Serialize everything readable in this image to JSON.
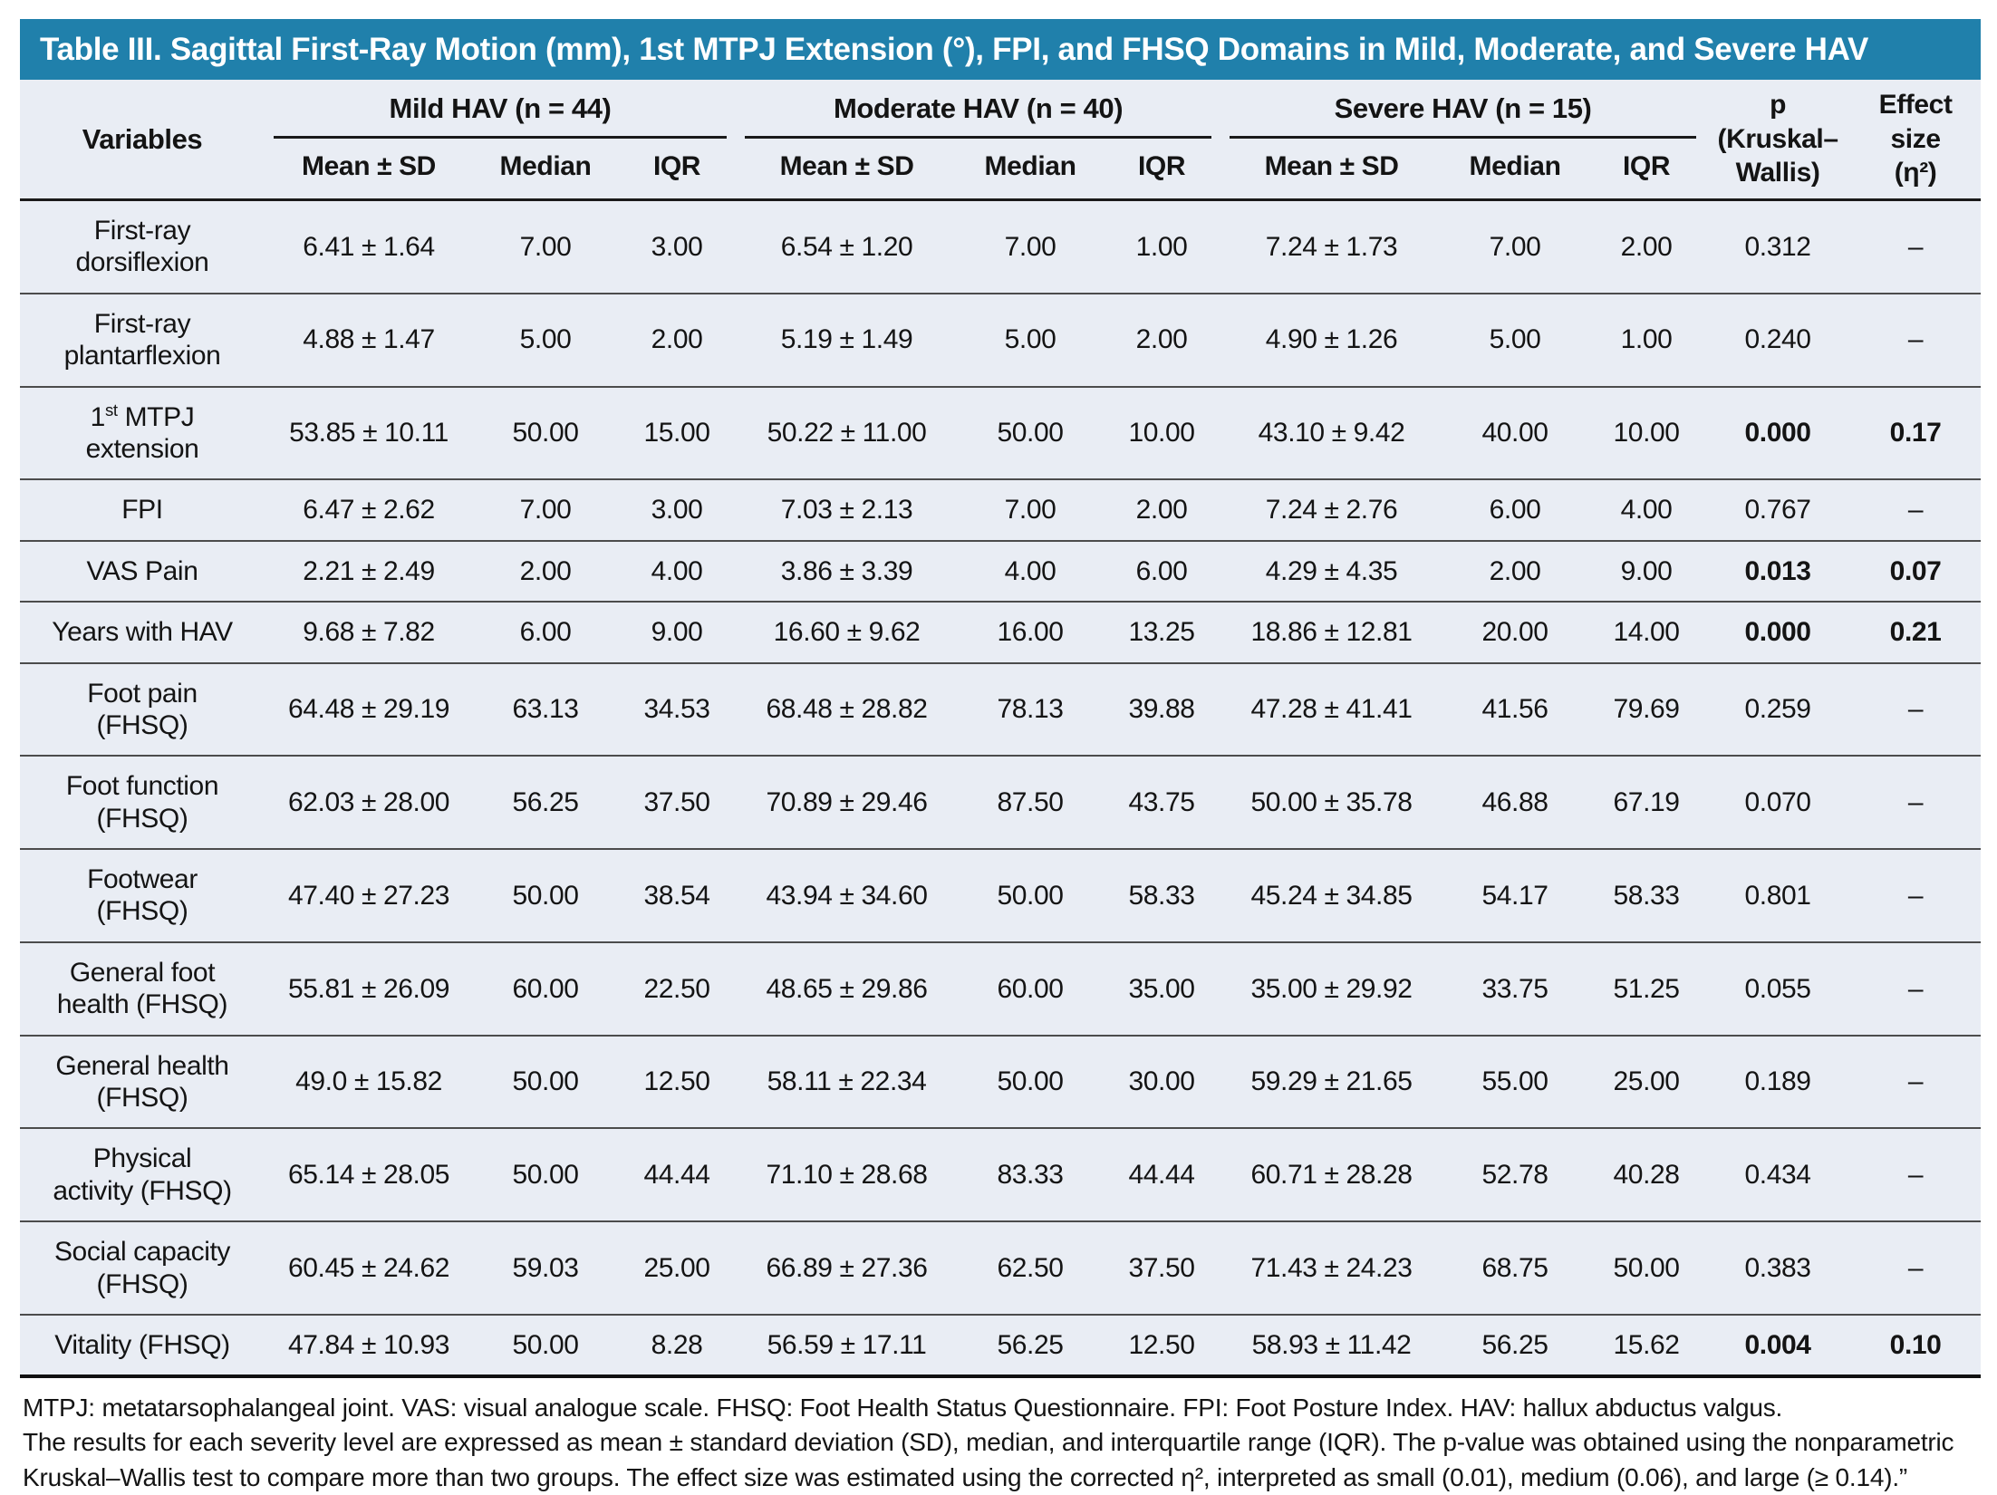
{
  "title": "Table III. Sagittal First-Ray Motion (mm), 1st MTPJ Extension (°), FPI, and FHSQ Domains in Mild, Moderate, and Severe HAV",
  "header": {
    "variables": "Variables",
    "groups": [
      "Mild HAV (n = 44)",
      "Moderate HAV (n = 40)",
      "Severe HAV (n = 15)"
    ],
    "sub_columns": [
      "Mean ± SD",
      "Median",
      "IQR"
    ],
    "p_column": "p\n(Kruskal–\nWallis)",
    "effect_column": "Effect\nsize\n(η²)"
  },
  "table": {
    "rows": [
      {
        "label": "First-ray\ndorsiflexion",
        "mild": [
          "6.41 ± 1.64",
          "7.00",
          "3.00"
        ],
        "moderate": [
          "6.54 ± 1.20",
          "7.00",
          "1.00"
        ],
        "severe": [
          "7.24 ± 1.73",
          "7.00",
          "2.00"
        ],
        "p": "0.312",
        "effect_size": "–",
        "significant": false
      },
      {
        "label": "First-ray\nplantarflexion",
        "mild": [
          "4.88 ± 1.47",
          "5.00",
          "2.00"
        ],
        "moderate": [
          "5.19 ± 1.49",
          "5.00",
          "2.00"
        ],
        "severe": [
          "4.90 ± 1.26",
          "5.00",
          "1.00"
        ],
        "p": "0.240",
        "effect_size": "–",
        "significant": false
      },
      {
        "label": "1<sup>st</sup> MTPJ\nextension",
        "mild": [
          "53.85 ± 10.11",
          "50.00",
          "15.00"
        ],
        "moderate": [
          "50.22 ± 11.00",
          "50.00",
          "10.00"
        ],
        "severe": [
          "43.10 ± 9.42",
          "40.00",
          "10.00"
        ],
        "p": "0.000",
        "effect_size": "0.17",
        "significant": true
      },
      {
        "label": "FPI",
        "mild": [
          "6.47 ± 2.62",
          "7.00",
          "3.00"
        ],
        "moderate": [
          "7.03 ± 2.13",
          "7.00",
          "2.00"
        ],
        "severe": [
          "7.24 ± 2.76",
          "6.00",
          "4.00"
        ],
        "p": "0.767",
        "effect_size": "–",
        "significant": false
      },
      {
        "label": "VAS Pain",
        "mild": [
          "2.21 ± 2.49",
          "2.00",
          "4.00"
        ],
        "moderate": [
          "3.86 ± 3.39",
          "4.00",
          "6.00"
        ],
        "severe": [
          "4.29 ± 4.35",
          "2.00",
          "9.00"
        ],
        "p": "0.013",
        "effect_size": "0.07",
        "significant": true
      },
      {
        "label": "Years with HAV",
        "mild": [
          "9.68 ± 7.82",
          "6.00",
          "9.00"
        ],
        "moderate": [
          "16.60 ± 9.62",
          "16.00",
          "13.25"
        ],
        "severe": [
          "18.86 ± 12.81",
          "20.00",
          "14.00"
        ],
        "p": "0.000",
        "effect_size": "0.21",
        "significant": true
      },
      {
        "label": "Foot pain\n(FHSQ)",
        "mild": [
          "64.48 ± 29.19",
          "63.13",
          "34.53"
        ],
        "moderate": [
          "68.48 ± 28.82",
          "78.13",
          "39.88"
        ],
        "severe": [
          "47.28 ± 41.41",
          "41.56",
          "79.69"
        ],
        "p": "0.259",
        "effect_size": "–",
        "significant": false
      },
      {
        "label": "Foot function\n(FHSQ)",
        "mild": [
          "62.03 ± 28.00",
          "56.25",
          "37.50"
        ],
        "moderate": [
          "70.89 ± 29.46",
          "87.50",
          "43.75"
        ],
        "severe": [
          "50.00 ± 35.78",
          "46.88",
          "67.19"
        ],
        "p": "0.070",
        "effect_size": "–",
        "significant": false
      },
      {
        "label": "Footwear\n(FHSQ)",
        "mild": [
          "47.40 ± 27.23",
          "50.00",
          "38.54"
        ],
        "moderate": [
          "43.94 ± 34.60",
          "50.00",
          "58.33"
        ],
        "severe": [
          "45.24 ± 34.85",
          "54.17",
          "58.33"
        ],
        "p": "0.801",
        "effect_size": "–",
        "significant": false
      },
      {
        "label": "General foot\nhealth (FHSQ)",
        "mild": [
          "55.81 ± 26.09",
          "60.00",
          "22.50"
        ],
        "moderate": [
          "48.65 ± 29.86",
          "60.00",
          "35.00"
        ],
        "severe": [
          "35.00 ± 29.92",
          "33.75",
          "51.25"
        ],
        "p": "0.055",
        "effect_size": "–",
        "significant": false
      },
      {
        "label": "General health\n(FHSQ)",
        "mild": [
          "49.0 ± 15.82",
          "50.00",
          "12.50"
        ],
        "moderate": [
          "58.11 ± 22.34",
          "50.00",
          "30.00"
        ],
        "severe": [
          "59.29 ± 21.65",
          "55.00",
          "25.00"
        ],
        "p": "0.189",
        "effect_size": "–",
        "significant": false
      },
      {
        "label": "Physical\nactivity (FHSQ)",
        "mild": [
          "65.14 ± 28.05",
          "50.00",
          "44.44"
        ],
        "moderate": [
          "71.10 ± 28.68",
          "83.33",
          "44.44"
        ],
        "severe": [
          "60.71 ± 28.28",
          "52.78",
          "40.28"
        ],
        "p": "0.434",
        "effect_size": "–",
        "significant": false
      },
      {
        "label": "Social capacity\n(FHSQ)",
        "mild": [
          "60.45 ± 24.62",
          "59.03",
          "25.00"
        ],
        "moderate": [
          "66.89 ± 27.36",
          "62.50",
          "37.50"
        ],
        "severe": [
          "71.43 ± 24.23",
          "68.75",
          "50.00"
        ],
        "p": "0.383",
        "effect_size": "–",
        "significant": false
      },
      {
        "label": "Vitality (FHSQ)",
        "mild": [
          "47.84 ± 10.93",
          "50.00",
          "8.28"
        ],
        "moderate": [
          "56.59 ± 17.11",
          "56.25",
          "12.50"
        ],
        "severe": [
          "58.93 ± 11.42",
          "56.25",
          "15.62"
        ],
        "p": "0.004",
        "effect_size": "0.10",
        "significant": true
      }
    ]
  },
  "footnotes": [
    "MTPJ: metatarsophalangeal joint. VAS: visual analogue scale. FHSQ: Foot Health Status Questionnaire. FPI: Foot Posture Index. HAV: hallux abductus valgus.",
    "The results for each severity level are expressed as mean ± standard deviation (SD), median, and interquartile range (IQR). The p-value was obtained using the nonparametric Kruskal–Wallis test to compare more than two groups. The effect size was estimated using the corrected η², interpreted as small (0.01), medium (0.06), and large (≥ 0.14).”"
  ],
  "colors": {
    "header_bar": "#2080ab",
    "table_bg": "#e9edf4",
    "row_divider": "#4c4c4c",
    "heavy_line": "#1a1a1a",
    "text": "#141414"
  }
}
